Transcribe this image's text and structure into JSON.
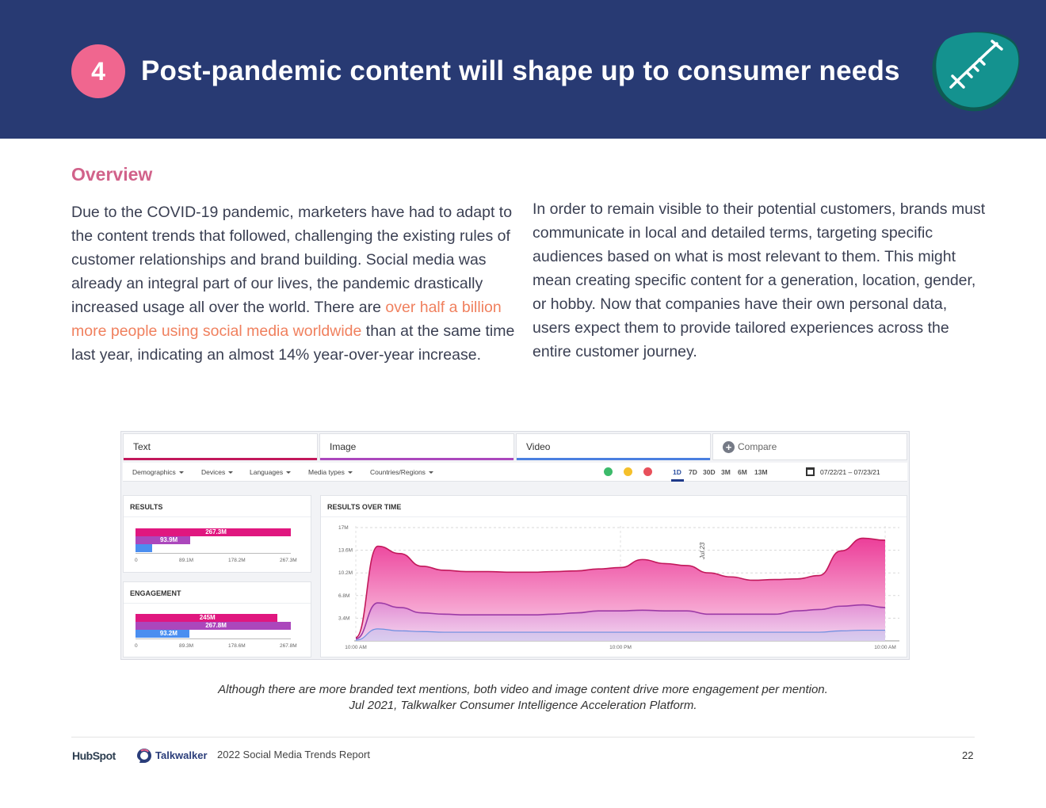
{
  "header": {
    "number": "4",
    "title": "Post-pandemic content will shape up to consumer needs",
    "icon": "syringe-icon",
    "colors": {
      "band": "#283a73",
      "badge": "#f0668f",
      "blob": "#14928f"
    }
  },
  "overview": {
    "heading": "Overview",
    "left_before": "Due to the COVID-19 pandemic, marketers have had to adapt to the content trends that followed, challenging the existing rules of customer relationships and brand building. Social media was already an integral part of our lives, the pandemic drastically increased usage all over the world. There are ",
    "left_link": "over half a billion more people using social media worldwide",
    "left_after": " than at the same time last year, indicating an almost 14% year-over-year increase.",
    "right": "In order to remain visible to their potential customers, brands must communicate in local and detailed terms, targeting specific audiences based on what is most relevant to them. This might mean creating specific content for a generation, location, gender, or hobby. Now that companies have their own personal data, users expect them to provide tailored experiences across the entire customer journey."
  },
  "dashboard": {
    "tabs": [
      {
        "label": "Text",
        "color": "#c2185b"
      },
      {
        "label": "Image",
        "color": "#ab47bc"
      },
      {
        "label": "Video",
        "color": "#4a7fe0"
      }
    ],
    "compare_label": "Compare",
    "filters": [
      "Demographics",
      "Devices",
      "Languages",
      "Media types",
      "Countries/Regions"
    ],
    "ranges": [
      "1D",
      "7D",
      "30D",
      "3M",
      "6M",
      "13M"
    ],
    "active_range": "1D",
    "date_range": "07/22/21 – 07/23/21",
    "results": {
      "title": "RESULTS",
      "values": [
        {
          "label": "267.3M",
          "value": 267.3
        },
        {
          "label": "93.9M",
          "value": 93.9
        },
        {
          "label": "",
          "value": 29
        }
      ],
      "ticks": [
        "0",
        "89.1M",
        "178.2M",
        "267.3M"
      ],
      "max": 267.3
    },
    "engagement": {
      "title": "ENGAGEMENT",
      "values": [
        {
          "label": "245M",
          "value": 245
        },
        {
          "label": "267.8M",
          "value": 267.8
        },
        {
          "label": "93.2M",
          "value": 93.2
        }
      ],
      "ticks": [
        "0",
        "89.3M",
        "178.6M",
        "267.8M"
      ],
      "max": 267.8
    },
    "over_time": {
      "title": "RESULTS OVER TIME",
      "y_ticks": [
        "17M",
        "13.6M",
        "10.2M",
        "6.8M",
        "3.4M"
      ],
      "x_ticks": [
        "10:00 AM",
        "10:00 PM",
        "10:00 AM"
      ],
      "annotation": "Jul 23"
    }
  },
  "chart_data": {
    "type": "area",
    "title": "RESULTS OVER TIME",
    "x": [
      0,
      1,
      2,
      3,
      4,
      5,
      6,
      7,
      8,
      9,
      10,
      11,
      12,
      13,
      14,
      15,
      16,
      17,
      18,
      19,
      20,
      21,
      22,
      23,
      24
    ],
    "ylim": [
      0,
      17
    ],
    "series": [
      {
        "name": "Text",
        "values": [
          0.5,
          14.2,
          13.1,
          11.2,
          10.6,
          10.4,
          10.4,
          10.3,
          10.3,
          10.4,
          10.5,
          10.8,
          11,
          12.2,
          11.6,
          11.3,
          10.2,
          9.6,
          9.1,
          9.2,
          9.3,
          9.8,
          13.5,
          15.4,
          15.1
        ]
      },
      {
        "name": "Image",
        "values": [
          0.3,
          5.7,
          5.0,
          4.2,
          4.0,
          3.9,
          3.9,
          3.9,
          3.9,
          4.0,
          4.2,
          4.5,
          4.5,
          4.6,
          4.5,
          4.5,
          4.0,
          4.0,
          4.0,
          4.0,
          4.5,
          4.7,
          5.2,
          5.4,
          5.0
        ]
      },
      {
        "name": "Video",
        "values": [
          0.1,
          1.8,
          1.5,
          1.4,
          1.3,
          1.3,
          1.3,
          1.3,
          1.3,
          1.3,
          1.3,
          1.3,
          1.3,
          1.3,
          1.3,
          1.3,
          1.3,
          1.3,
          1.3,
          1.3,
          1.3,
          1.3,
          1.5,
          1.6,
          1.6
        ]
      }
    ]
  },
  "caption": {
    "line1": "Although there are more branded text mentions, both video and image content drive more engagement per mention.",
    "line2": "Jul 2021, Talkwalker Consumer Intelligence Acceleration Platform."
  },
  "footer": {
    "hubspot": "HubSpot",
    "talkwalker": "Talkwalker",
    "report": "2022 Social Media Trends Report",
    "page": "22"
  }
}
